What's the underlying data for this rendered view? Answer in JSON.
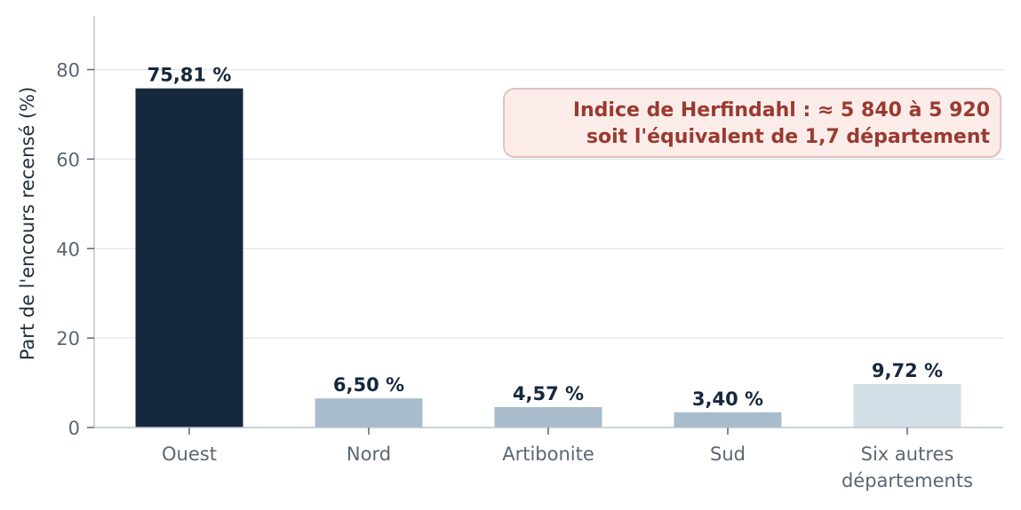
{
  "chart_data": {
    "type": "bar",
    "categories": [
      "Ouest",
      "Nord",
      "Artibonite",
      "Sud",
      "Six autres départements"
    ],
    "category_lines": [
      [
        "Ouest"
      ],
      [
        "Nord"
      ],
      [
        "Artibonite"
      ],
      [
        "Sud"
      ],
      [
        "Six autres",
        "départements"
      ]
    ],
    "values": [
      75.81,
      6.5,
      4.57,
      3.4,
      9.72
    ],
    "value_labels": [
      "75,81 %",
      "6,50 %",
      "4,57 %",
      "3,40 %",
      "9,72 %"
    ],
    "bar_colors": [
      "#16283d",
      "#a8bccb",
      "#a8bccb",
      "#a8bccb",
      "#d3dfe6"
    ],
    "title": "",
    "xlabel": "",
    "ylabel": "Part de l'encours recensé (%)",
    "ylim": [
      0,
      92
    ],
    "yticks": [
      0,
      20,
      40,
      60,
      80
    ],
    "grid": "horizontal",
    "annotation": {
      "lines": [
        "Indice de Herfindahl : ≈ 5 840 à 5 920",
        "soit l'équivalent de 1,7 département"
      ],
      "placement": "top-right"
    }
  },
  "colors": {
    "grid": "#dde6ec",
    "axis": "#b9c6d2",
    "annotation_bg": "#fbecea",
    "annotation_border": "#e3c1bc"
  }
}
